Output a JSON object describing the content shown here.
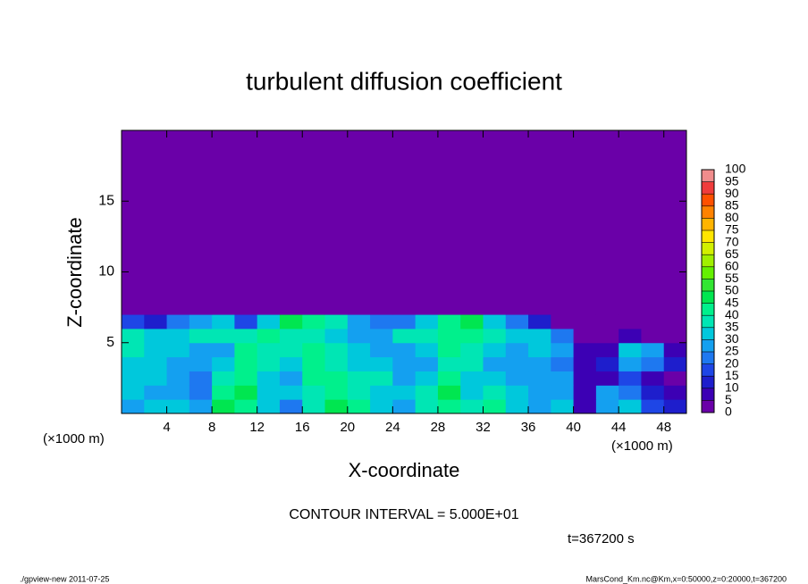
{
  "chart_data": {
    "type": "heatmap",
    "title": "turbulent diffusion coefficient",
    "x_label": "X-coordinate",
    "y_label": "Z-coordinate",
    "x_unit": "(×1000 m)",
    "y_unit": "(×1000 m)",
    "contour_interval": "CONTOUR INTERVAL = 5.000E+01",
    "time_label": "t=367200 s",
    "xlim": [
      0,
      50
    ],
    "ylim": [
      0,
      20
    ],
    "xticks": [
      4,
      8,
      12,
      16,
      20,
      24,
      28,
      32,
      36,
      40,
      44,
      48
    ],
    "yticks": [
      5,
      10,
      15
    ],
    "x_edges": [
      0,
      2,
      4,
      6,
      8,
      10,
      12,
      14,
      16,
      18,
      20,
      22,
      24,
      26,
      28,
      30,
      32,
      34,
      36,
      38,
      40,
      42,
      44,
      46,
      48,
      50
    ],
    "y_edges": [
      0,
      1,
      2,
      3,
      4,
      5,
      6,
      7,
      20
    ],
    "z": [
      [
        28,
        32,
        30,
        25,
        45,
        40,
        30,
        20,
        35,
        45,
        40,
        30,
        25,
        35,
        40,
        38,
        42,
        30,
        25,
        30,
        5,
        25,
        30,
        15,
        10
      ],
      [
        30,
        28,
        25,
        22,
        40,
        45,
        32,
        30,
        38,
        42,
        38,
        32,
        30,
        35,
        45,
        30,
        35,
        32,
        28,
        28,
        5,
        25,
        20,
        10,
        5
      ],
      [
        32,
        30,
        26,
        24,
        35,
        42,
        30,
        28,
        40,
        40,
        35,
        35,
        28,
        30,
        40,
        32,
        30,
        28,
        26,
        25,
        5,
        5,
        15,
        5,
        0
      ],
      [
        30,
        32,
        28,
        25,
        30,
        40,
        38,
        30,
        42,
        38,
        32,
        30,
        26,
        28,
        35,
        35,
        28,
        25,
        28,
        20,
        5,
        10,
        25,
        20,
        10
      ],
      [
        35,
        30,
        32,
        28,
        25,
        40,
        35,
        38,
        40,
        35,
        30,
        26,
        25,
        30,
        40,
        38,
        30,
        28,
        30,
        25,
        5,
        5,
        30,
        25,
        5
      ],
      [
        35,
        32,
        30,
        38,
        35,
        38,
        40,
        35,
        38,
        30,
        28,
        25,
        35,
        38,
        42,
        40,
        35,
        30,
        32,
        20,
        0,
        0,
        5,
        0,
        0
      ],
      [
        15,
        10,
        20,
        25,
        30,
        15,
        30,
        45,
        40,
        35,
        25,
        20,
        20,
        30,
        40,
        45,
        30,
        20,
        10,
        0,
        0,
        0,
        0,
        0,
        0
      ],
      [
        0,
        0,
        0,
        0,
        0,
        0,
        0,
        0,
        0,
        0,
        0,
        0,
        0,
        0,
        0,
        0,
        0,
        0,
        0,
        0,
        0,
        0,
        0,
        0,
        0
      ]
    ],
    "colorbar": {
      "levels": [
        0,
        5,
        10,
        15,
        20,
        25,
        30,
        35,
        40,
        45,
        50,
        55,
        60,
        65,
        70,
        75,
        80,
        85,
        90,
        95,
        100
      ],
      "colors": [
        "#6a00a8",
        "#3c00b4",
        "#1e1ecc",
        "#1e46e6",
        "#1e78f0",
        "#14a0f0",
        "#00c8dc",
        "#00e6b4",
        "#00f08c",
        "#00e650",
        "#32e632",
        "#64f000",
        "#a0f000",
        "#d2f000",
        "#ffe600",
        "#ffb400",
        "#ff8200",
        "#ff5000",
        "#f03c3c",
        "#f08c8c"
      ]
    }
  },
  "footer": {
    "left": "./gpview-new  2011-07-25",
    "right": "MarsCond_Km.nc@Km,x=0:50000,z=0:20000,t=367200"
  }
}
